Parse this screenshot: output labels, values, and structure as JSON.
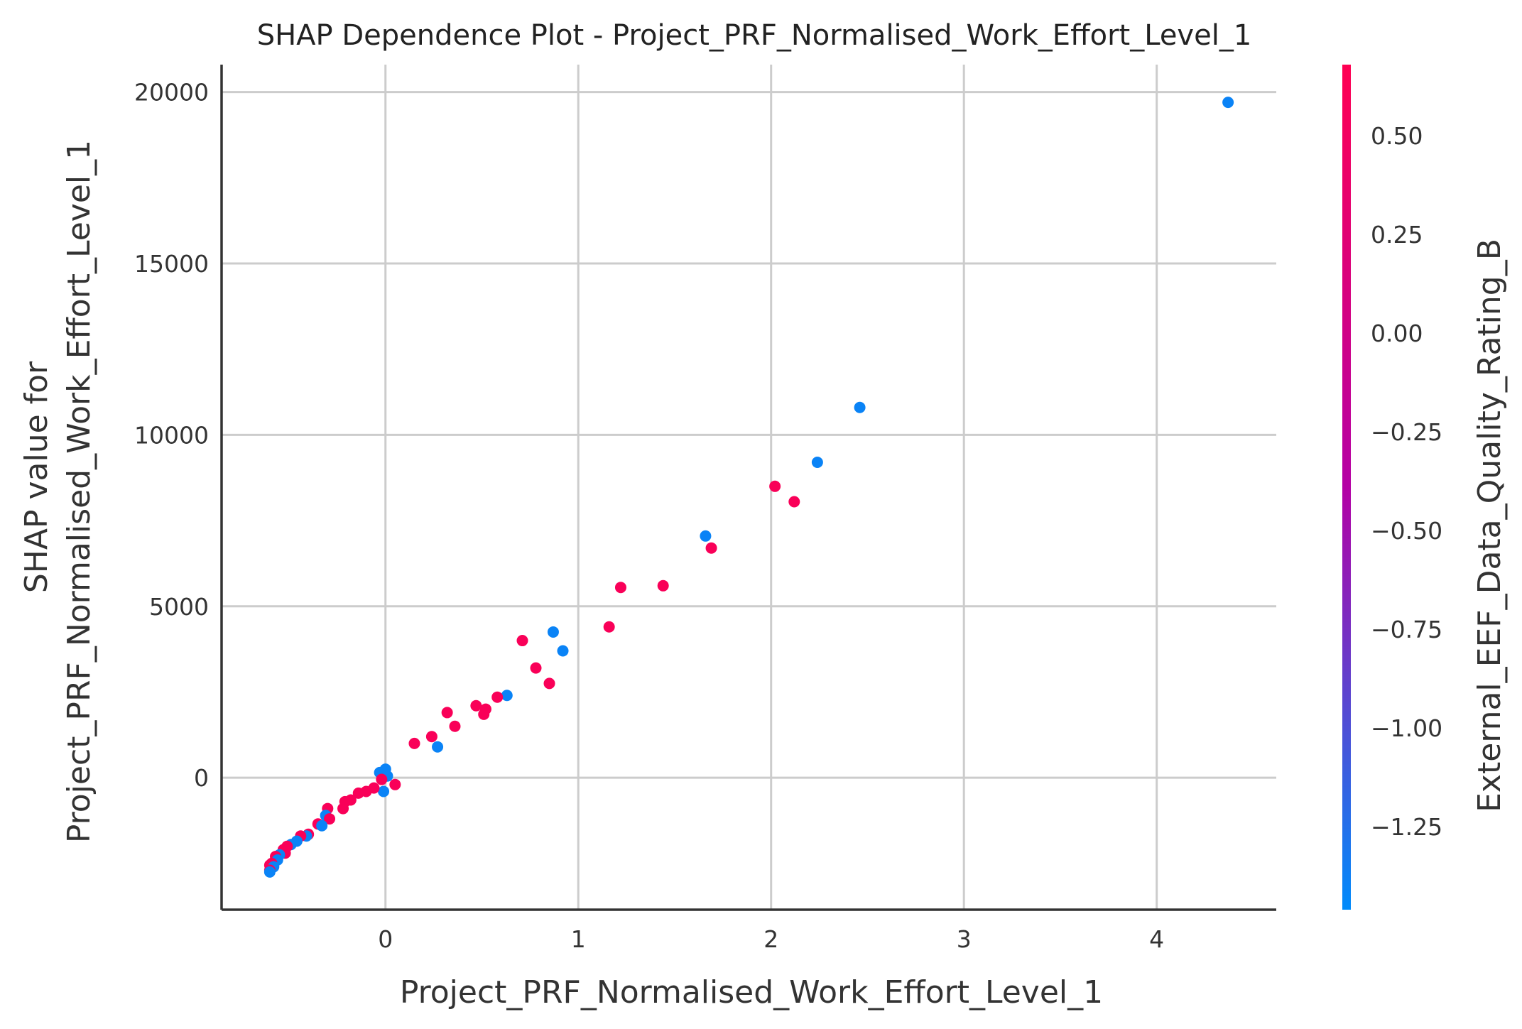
{
  "chart_data": {
    "type": "scatter",
    "title": "SHAP Dependence Plot - Project_PRF_Normalised_Work_Effort_Level_1",
    "xlabel": "Project_PRF_Normalised_Work_Effort_Level_1",
    "ylabel_lines": [
      "SHAP value for",
      "Project_PRF_Normalised_Work_Effort_Level_1"
    ],
    "xlim": [
      -0.85,
      4.62
    ],
    "ylim": [
      -3850,
      20800
    ],
    "x_ticks": [
      0,
      1,
      2,
      3,
      4
    ],
    "y_ticks": [
      0,
      5000,
      10000,
      15000,
      20000
    ],
    "grid": true,
    "colorbar": {
      "label": "External_EEF_Data_Quality_Rating_B",
      "range": [
        -1.46,
        0.68
      ],
      "ticks": [
        0.5,
        0.25,
        0.0,
        -0.25,
        -0.5,
        -0.75,
        -1.0,
        -1.25
      ],
      "tick_labels": [
        "0.50",
        "0.25",
        "0.00",
        "−0.25",
        "−0.50",
        "−0.75",
        "−1.00",
        "−1.25"
      ],
      "color_high": "#ff0052",
      "color_mid": "#b400a5",
      "color_low": "#008bfb"
    },
    "points": [
      {
        "x": 4.37,
        "y": 19700,
        "c": -1.4
      },
      {
        "x": 2.46,
        "y": 10800,
        "c": -1.4
      },
      {
        "x": 2.24,
        "y": 9200,
        "c": -1.4
      },
      {
        "x": 2.02,
        "y": 8500,
        "c": 0.6
      },
      {
        "x": 2.12,
        "y": 8050,
        "c": 0.6
      },
      {
        "x": 1.66,
        "y": 7050,
        "c": -1.4
      },
      {
        "x": 1.69,
        "y": 6700,
        "c": 0.6
      },
      {
        "x": 1.22,
        "y": 5550,
        "c": 0.6
      },
      {
        "x": 1.44,
        "y": 5600,
        "c": 0.6
      },
      {
        "x": 1.16,
        "y": 4400,
        "c": 0.6
      },
      {
        "x": 0.87,
        "y": 4250,
        "c": -1.4
      },
      {
        "x": 0.71,
        "y": 4000,
        "c": 0.6
      },
      {
        "x": 0.92,
        "y": 3700,
        "c": -1.4
      },
      {
        "x": 0.78,
        "y": 3200,
        "c": 0.6
      },
      {
        "x": 0.85,
        "y": 2750,
        "c": 0.6
      },
      {
        "x": 0.63,
        "y": 2400,
        "c": -1.4
      },
      {
        "x": 0.58,
        "y": 2350,
        "c": 0.6
      },
      {
        "x": 0.47,
        "y": 2100,
        "c": 0.6
      },
      {
        "x": 0.52,
        "y": 2000,
        "c": 0.6
      },
      {
        "x": 0.51,
        "y": 1850,
        "c": 0.6
      },
      {
        "x": 0.32,
        "y": 1900,
        "c": 0.6
      },
      {
        "x": 0.36,
        "y": 1500,
        "c": 0.6
      },
      {
        "x": 0.24,
        "y": 1200,
        "c": 0.6
      },
      {
        "x": 0.15,
        "y": 1000,
        "c": 0.6
      },
      {
        "x": 0.27,
        "y": 900,
        "c": -1.4
      },
      {
        "x": 0.0,
        "y": 250,
        "c": -1.4
      },
      {
        "x": -0.03,
        "y": 150,
        "c": -1.4
      },
      {
        "x": 0.01,
        "y": 50,
        "c": -1.4
      },
      {
        "x": -0.02,
        "y": -50,
        "c": 0.6
      },
      {
        "x": 0.05,
        "y": -200,
        "c": 0.6
      },
      {
        "x": -0.01,
        "y": -400,
        "c": -1.4
      },
      {
        "x": -0.06,
        "y": -300,
        "c": 0.6
      },
      {
        "x": -0.1,
        "y": -400,
        "c": 0.6
      },
      {
        "x": -0.14,
        "y": -450,
        "c": 0.6
      },
      {
        "x": -0.18,
        "y": -650,
        "c": 0.6
      },
      {
        "x": -0.21,
        "y": -700,
        "c": 0.6
      },
      {
        "x": -0.3,
        "y": -900,
        "c": 0.6
      },
      {
        "x": -0.22,
        "y": -900,
        "c": 0.6
      },
      {
        "x": -0.31,
        "y": -1100,
        "c": -1.4
      },
      {
        "x": -0.29,
        "y": -1200,
        "c": 0.6
      },
      {
        "x": -0.35,
        "y": -1350,
        "c": 0.6
      },
      {
        "x": -0.33,
        "y": -1400,
        "c": -1.4
      },
      {
        "x": -0.4,
        "y": -1650,
        "c": 0.6
      },
      {
        "x": -0.41,
        "y": -1700,
        "c": -1.4
      },
      {
        "x": -0.44,
        "y": -1700,
        "c": 0.6
      },
      {
        "x": -0.46,
        "y": -1850,
        "c": -1.4
      },
      {
        "x": -0.49,
        "y": -1950,
        "c": -1.4
      },
      {
        "x": -0.51,
        "y": -2000,
        "c": 0.6
      },
      {
        "x": -0.53,
        "y": -2100,
        "c": 0.6
      },
      {
        "x": -0.52,
        "y": -2200,
        "c": 0.6
      },
      {
        "x": -0.55,
        "y": -2250,
        "c": -1.4
      },
      {
        "x": -0.57,
        "y": -2300,
        "c": 0.6
      },
      {
        "x": -0.56,
        "y": -2400,
        "c": -1.4
      },
      {
        "x": -0.59,
        "y": -2500,
        "c": 0.6
      },
      {
        "x": -0.6,
        "y": -2550,
        "c": 0.6
      },
      {
        "x": -0.58,
        "y": -2600,
        "c": -1.4
      },
      {
        "x": -0.6,
        "y": -2700,
        "c": 0.6
      },
      {
        "x": -0.6,
        "y": -2750,
        "c": -1.4
      }
    ]
  }
}
